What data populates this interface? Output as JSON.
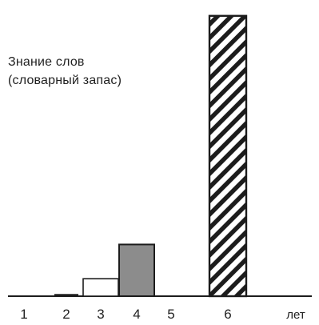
{
  "chart_data": {
    "type": "bar",
    "ylabel": "Знание слов\n(словарный запас)",
    "xlabel": "лет",
    "categories": [
      "1",
      "2",
      "3",
      "4",
      "5",
      "6"
    ],
    "values": [
      0,
      0.7,
      5.6,
      16.6,
      0,
      90
    ],
    "ylim": [
      0,
      92
    ],
    "grid": false,
    "bar_styles": [
      "none",
      "solid-dark",
      "outline",
      "gray-fill",
      "none",
      "hatched"
    ],
    "colors": {
      "ink": "#1c1c1c",
      "gray_fill": "#8c8c8c",
      "white": "#ffffff"
    }
  }
}
